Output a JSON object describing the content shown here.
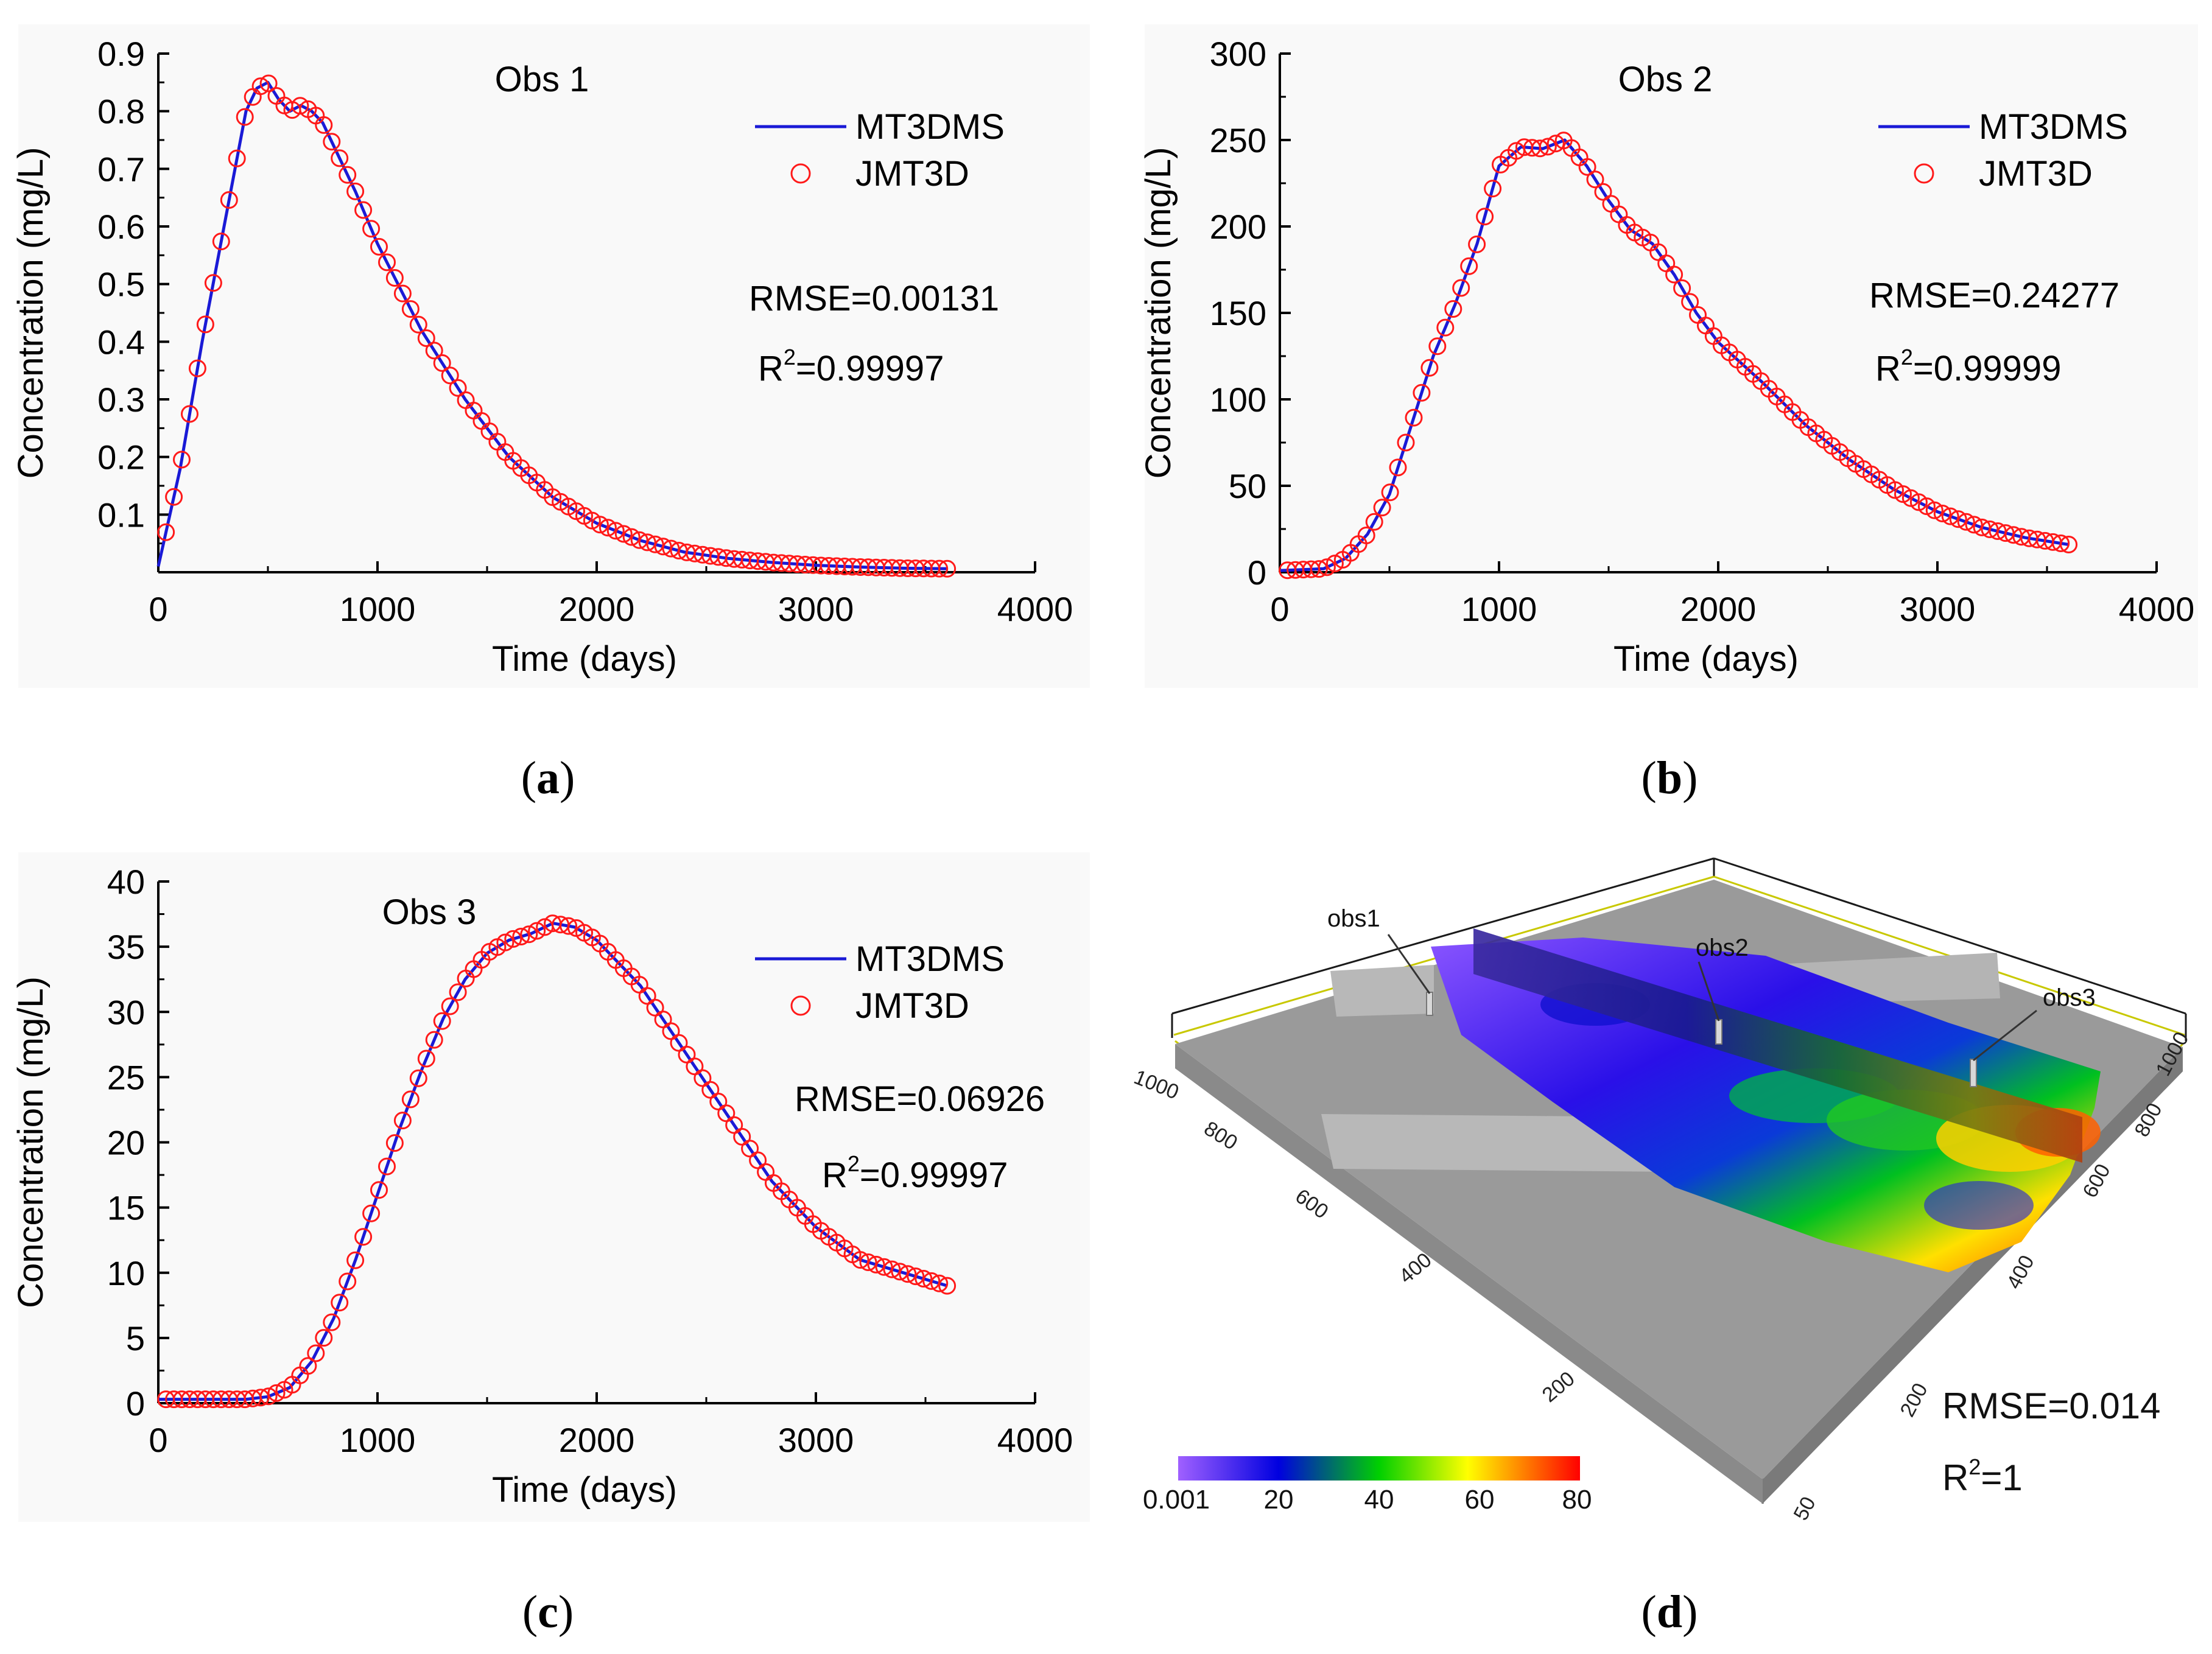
{
  "chart_data": [
    {
      "id": "a",
      "type": "line",
      "caption": "a",
      "title": "Obs 1",
      "xlabel": "Time (days)",
      "ylabel": "Concentration (mg/L)",
      "xlim": [
        0,
        4000
      ],
      "ylim": [
        0,
        0.9
      ],
      "xticks": [
        0,
        1000,
        2000,
        3000,
        4000
      ],
      "xtick_labels": [
        "0",
        "1000",
        "2000",
        "3000",
        "4000"
      ],
      "yticks": [
        0.1,
        0.2,
        0.3,
        0.4,
        0.5,
        0.6,
        0.7,
        0.8,
        0.9
      ],
      "ytick_labels": [
        "0.1",
        "0.2",
        "0.3",
        "0.4",
        "0.5",
        "0.6",
        "0.7",
        "0.8",
        "0.9"
      ],
      "legend": {
        "position": "top-right",
        "line_label": "MT3DMS",
        "marker_label": "JMT3D"
      },
      "stats": {
        "rmse": "RMSE=0.00131",
        "r2_prefix": "R",
        "r2_sup": "2",
        "r2_value": "=0.99997"
      },
      "series": [
        {
          "name": "MT3DMS",
          "style": "line",
          "color": "#1a1ad6"
        },
        {
          "name": "JMT3D",
          "style": "circle",
          "color": "#ff1a1a"
        }
      ],
      "x": [
        0,
        100,
        200,
        300,
        400,
        450,
        500,
        550,
        600,
        650,
        700,
        750,
        800,
        900,
        1000,
        1200,
        1400,
        1600,
        1800,
        2000,
        2200,
        2400,
        2600,
        2800,
        3000,
        3200,
        3400,
        3600
      ],
      "y": [
        0.01,
        0.18,
        0.4,
        0.6,
        0.8,
        0.84,
        0.85,
        0.82,
        0.8,
        0.81,
        0.8,
        0.78,
        0.74,
        0.66,
        0.57,
        0.42,
        0.3,
        0.2,
        0.13,
        0.085,
        0.055,
        0.035,
        0.024,
        0.017,
        0.012,
        0.009,
        0.007,
        0.006
      ]
    },
    {
      "id": "b",
      "type": "line",
      "caption": "b",
      "title": "Obs 2",
      "xlabel": "Time (days)",
      "ylabel": "Concentration (mg/L)",
      "xlim": [
        0,
        4000
      ],
      "ylim": [
        0,
        300
      ],
      "xticks": [
        0,
        1000,
        2000,
        3000,
        4000
      ],
      "xtick_labels": [
        "0",
        "1000",
        "2000",
        "3000",
        "4000"
      ],
      "yticks": [
        0,
        50,
        100,
        150,
        200,
        250,
        300
      ],
      "ytick_labels": [
        "0",
        "50",
        "100",
        "150",
        "200",
        "250",
        "300"
      ],
      "legend": {
        "position": "top-right",
        "line_label": "MT3DMS",
        "marker_label": "JMT3D"
      },
      "stats": {
        "rmse": "RMSE=0.24277",
        "r2_prefix": "R",
        "r2_sup": "2",
        "r2_value": "=0.99999"
      },
      "series": [
        {
          "name": "MT3DMS",
          "style": "line",
          "color": "#1a1ad6"
        },
        {
          "name": "JMT3D",
          "style": "circle",
          "color": "#ff1a1a"
        }
      ],
      "x": [
        0,
        200,
        300,
        400,
        500,
        600,
        700,
        800,
        900,
        1000,
        1100,
        1200,
        1300,
        1400,
        1500,
        1600,
        1700,
        1800,
        1900,
        2000,
        2200,
        2400,
        2600,
        2800,
        3000,
        3200,
        3400,
        3600
      ],
      "y": [
        1,
        2,
        8,
        22,
        45,
        85,
        125,
        155,
        190,
        235,
        246,
        245,
        250,
        235,
        215,
        198,
        190,
        172,
        150,
        133,
        110,
        85,
        65,
        48,
        35,
        26,
        20,
        16
      ]
    },
    {
      "id": "c",
      "type": "line",
      "caption": "c",
      "title": "Obs 3",
      "xlabel": "Time (days)",
      "ylabel": "Concentration (mg/L)",
      "xlim": [
        0,
        4000
      ],
      "ylim": [
        0,
        40
      ],
      "xticks": [
        0,
        1000,
        2000,
        3000,
        4000
      ],
      "xtick_labels": [
        "0",
        "1000",
        "2000",
        "3000",
        "4000"
      ],
      "yticks": [
        0,
        5,
        10,
        15,
        20,
        25,
        30,
        35,
        40
      ],
      "ytick_labels": [
        "0",
        "5",
        "10",
        "15",
        "20",
        "25",
        "30",
        "35",
        "40"
      ],
      "legend": {
        "position": "top-right",
        "line_label": "MT3DMS",
        "marker_label": "JMT3D"
      },
      "stats": {
        "rmse": "RMSE=0.06926",
        "r2_prefix": "R",
        "r2_sup": "2",
        "r2_value": "=0.99997"
      },
      "series": [
        {
          "name": "MT3DMS",
          "style": "line",
          "color": "#1a1ad6"
        },
        {
          "name": "JMT3D",
          "style": "circle",
          "color": "#ff1a1a"
        }
      ],
      "x": [
        0,
        400,
        500,
        600,
        700,
        800,
        900,
        1000,
        1100,
        1200,
        1300,
        1400,
        1500,
        1600,
        1700,
        1800,
        1900,
        2000,
        2200,
        2400,
        2600,
        2800,
        3000,
        3200,
        3400,
        3600
      ],
      "y": [
        0.3,
        0.3,
        0.5,
        1.2,
        3.2,
        6.5,
        11,
        16,
        21,
        25.5,
        29.5,
        32.5,
        34.5,
        35.5,
        36,
        36.8,
        36.5,
        35.5,
        32,
        27,
        22,
        17,
        13.5,
        11,
        10,
        9
      ]
    }
  ],
  "panel_d": {
    "caption": "d",
    "labels": {
      "obs1": "obs1",
      "obs2": "obs2",
      "obs3": "obs3"
    },
    "stats": {
      "rmse": "RMSE=0.014",
      "r2_prefix": "R",
      "r2_sup": "2",
      "r2_value": "=1"
    },
    "colorbar": {
      "ticks": [
        "0.001",
        "20",
        "40",
        "60",
        "80"
      ],
      "colors": [
        "#a060ff",
        "#0000e0",
        "#00d000",
        "#ffff00",
        "#ff0000"
      ]
    },
    "left_axis_ticks": [
      "1000",
      "800",
      "600",
      "400",
      "200"
    ],
    "right_axis_ticks": [
      "1000",
      "800",
      "600",
      "400",
      "200",
      "50"
    ]
  }
}
